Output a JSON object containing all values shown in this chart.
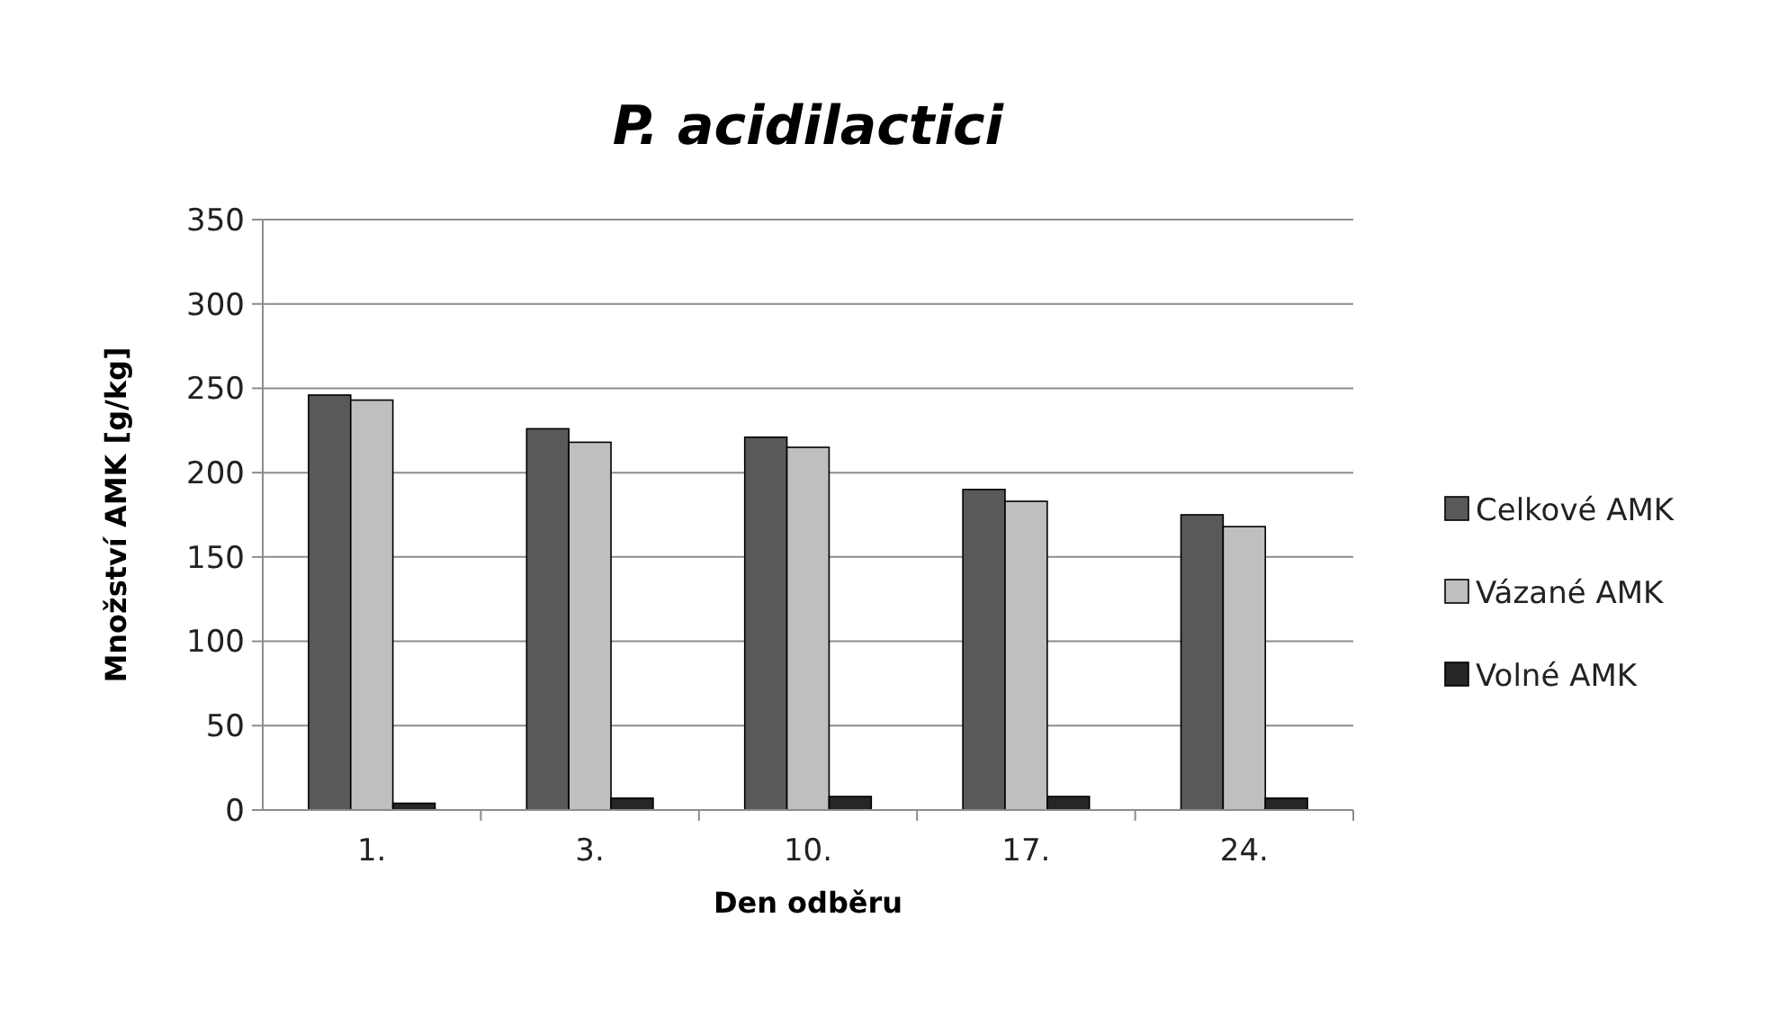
{
  "chart_data": {
    "type": "bar",
    "title": "P. acidilactici",
    "xlabel": "Den odběru",
    "ylabel": "Množství AMK [g/kg]",
    "categories": [
      "1.",
      "3.",
      "10.",
      "17.",
      "24."
    ],
    "series": [
      {
        "name": "Celkové AMK",
        "color": "#595959",
        "values": [
          246,
          226,
          221,
          190,
          175
        ]
      },
      {
        "name": "Vázané AMK",
        "color": "#bfbfbf",
        "values": [
          243,
          218,
          215,
          183,
          168
        ]
      },
      {
        "name": "Volné AMK",
        "color": "#262626",
        "values": [
          4,
          7,
          8,
          8,
          7
        ]
      }
    ],
    "ylim": [
      0,
      350
    ],
    "yticks": [
      0,
      50,
      100,
      150,
      200,
      250,
      300,
      350
    ],
    "grid": "y",
    "legend": "right"
  }
}
